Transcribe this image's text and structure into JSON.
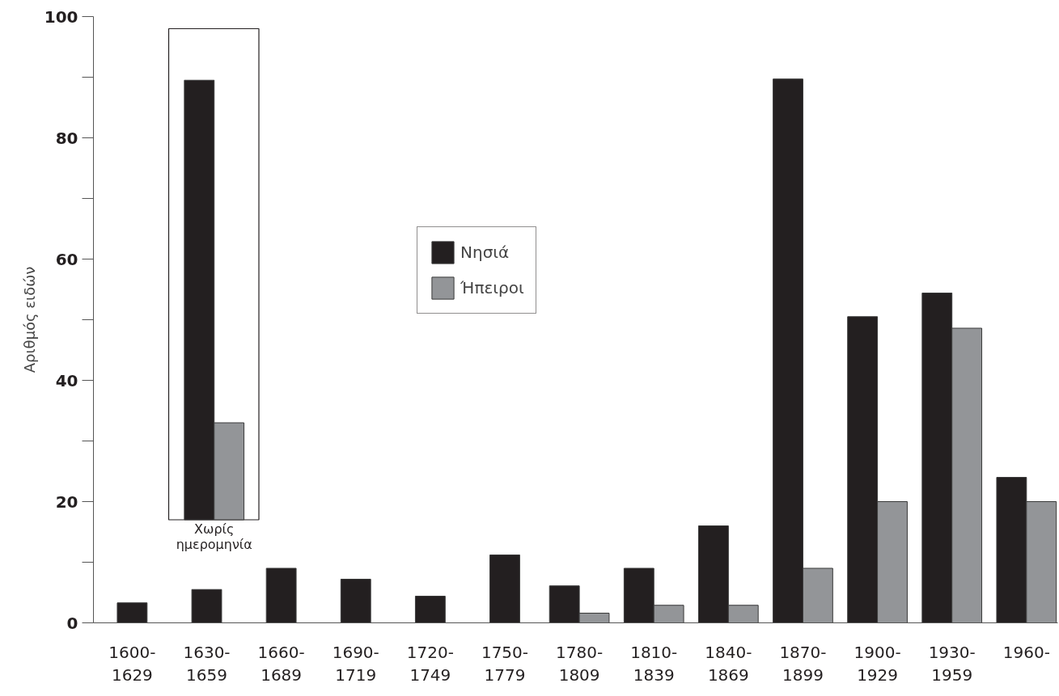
{
  "chart_data": [
    {
      "type": "bar",
      "ylabel": "Αριθμός ειδών",
      "categories": [
        "1600-1629",
        "1630-1659",
        "1660-1689",
        "1690-1719",
        "1720-1749",
        "1750-1779",
        "1780-1809",
        "1810-1839",
        "1840-1869",
        "1870-1899",
        "1900-1929",
        "1930-1959",
        "1960-"
      ],
      "series": [
        {
          "name": "Νησιά",
          "color": "#231f20",
          "values": [
            3.3,
            5.5,
            9,
            7.2,
            4.4,
            11.2,
            6.1,
            9,
            16,
            89.7,
            50.5,
            54.4,
            24
          ]
        },
        {
          "name": "Ήπειροι",
          "color": "#939598",
          "values": [
            null,
            null,
            null,
            null,
            null,
            null,
            1.6,
            2.9,
            2.9,
            9,
            20,
            48.6,
            20
          ]
        }
      ],
      "ylim": [
        0,
        100
      ],
      "yticks": [
        0,
        {
          "value": 10,
          "label": null
        },
        20,
        {
          "value": 30,
          "label": null
        },
        40,
        {
          "value": 50,
          "label": null
        },
        60,
        {
          "value": 70,
          "label": null
        },
        80,
        {
          "value": 90,
          "label": null
        },
        100
      ],
      "grid": false,
      "legend": "top"
    },
    {
      "type": "bar",
      "categories": [
        "Χωρίς ημερομηνία"
      ],
      "series": [
        {
          "color": "#231f20",
          "values": [
            72.5
          ],
          "base": [
            17
          ]
        },
        {
          "color": "#939598",
          "values": [
            16
          ],
          "base": [
            17
          ]
        }
      ],
      "ylim": [
        0,
        100
      ],
      "tick_labels": "x"
    }
  ]
}
